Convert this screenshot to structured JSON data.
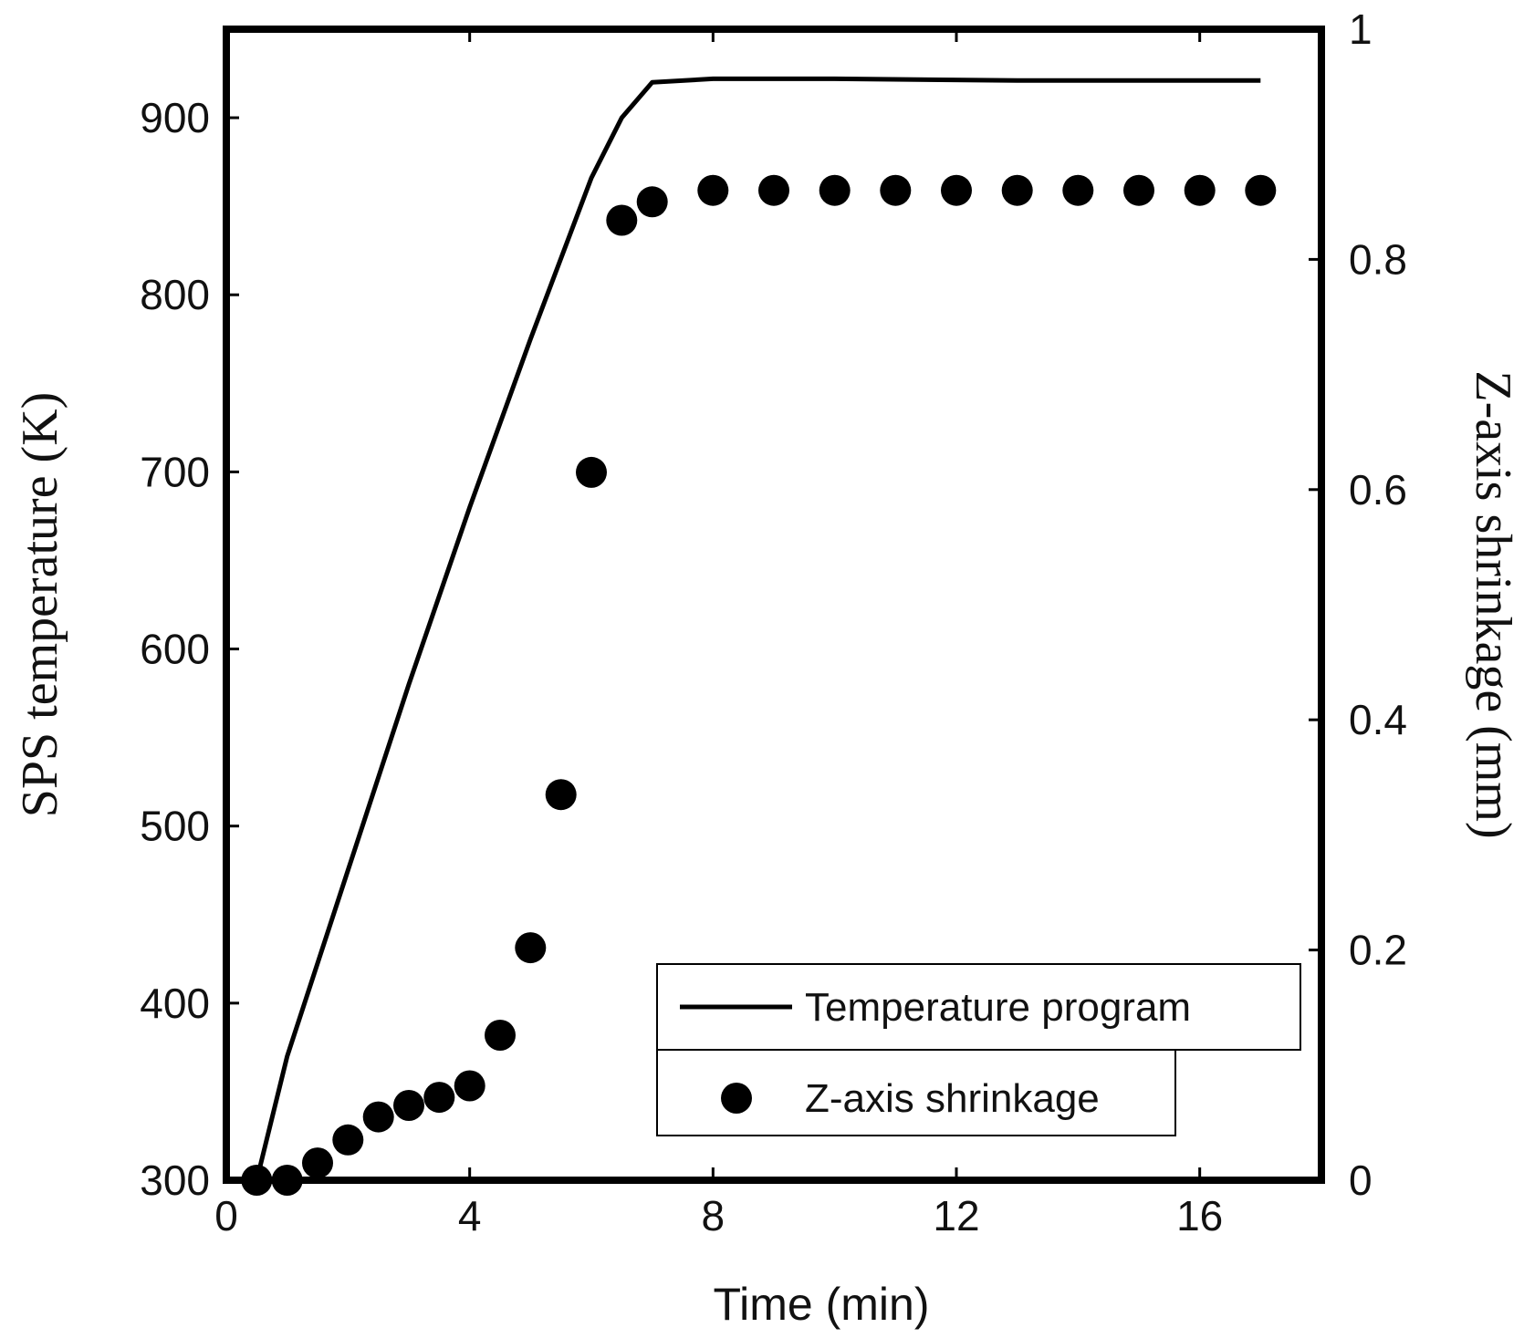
{
  "chart_data": {
    "type": "line+scatter",
    "xlabel": "Time (min)",
    "ylabel_left": "SPS temperature (K)",
    "ylabel_right": "Z-axis shrinkage (mm)",
    "xlim": [
      0,
      18
    ],
    "ylim_left": [
      300,
      950
    ],
    "ylim_right": [
      0,
      1
    ],
    "xticks": [
      0,
      4,
      8,
      12,
      16
    ],
    "yticks_left": [
      300,
      400,
      500,
      600,
      700,
      800,
      900
    ],
    "yticks_right": [
      0,
      0.2,
      0.4,
      0.6,
      0.8,
      1
    ],
    "xtick_labels": [
      "0",
      "4",
      "8",
      "12",
      "16"
    ],
    "ytick_labels_left": [
      "300",
      "400",
      "500",
      "600",
      "700",
      "800",
      "900"
    ],
    "ytick_labels_right": [
      "0",
      "0.2",
      "0.4",
      "0.6",
      "0.8",
      "1"
    ],
    "series": [
      {
        "name": "Temperature program",
        "axis": "left",
        "style": "line",
        "x": [
          0.5,
          1,
          2,
          3,
          4,
          5,
          6,
          6.5,
          7,
          8,
          10,
          13,
          17
        ],
        "y": [
          300,
          370,
          475,
          580,
          680,
          775,
          866,
          900,
          920,
          922,
          922,
          921,
          921
        ]
      },
      {
        "name": "Z-axis shrinkage",
        "axis": "right",
        "style": "markers",
        "x": [
          0.5,
          1,
          1.5,
          2,
          2.5,
          3,
          3.5,
          4,
          4.5,
          5,
          5.5,
          6,
          6.5,
          7,
          8,
          9,
          10,
          11,
          12,
          13,
          14,
          15,
          16,
          17
        ],
        "y": [
          0,
          0,
          0.015,
          0.035,
          0.055,
          0.065,
          0.072,
          0.082,
          0.126,
          0.202,
          0.335,
          0.615,
          0.834,
          0.85,
          0.86,
          0.86,
          0.86,
          0.86,
          0.86,
          0.86,
          0.86,
          0.86,
          0.86,
          0.86
        ]
      }
    ],
    "legend": {
      "position": "bottom-right",
      "entries": [
        "Temperature program",
        "Z-axis shrinkage"
      ]
    },
    "colors": {
      "line": "#000000",
      "marker": "#000000"
    }
  }
}
